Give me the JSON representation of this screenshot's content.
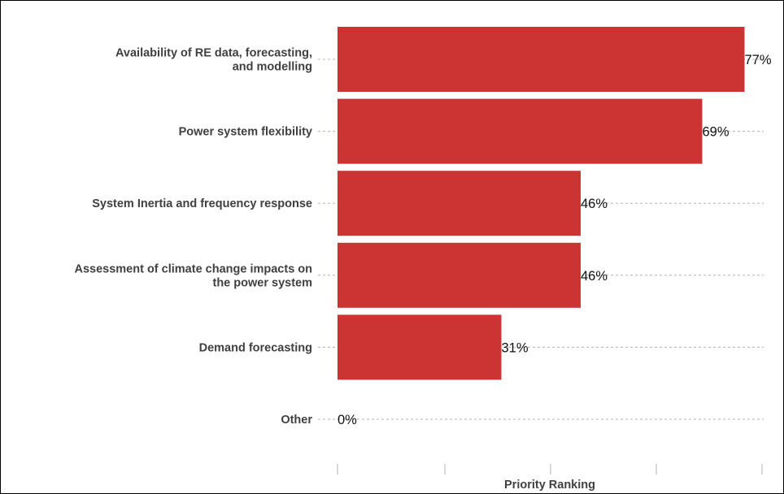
{
  "chart_data": {
    "type": "bar",
    "orientation": "horizontal",
    "categories": [
      [
        "Availability of RE data, forecasting,",
        "and modelling"
      ],
      [
        "Power system flexibility"
      ],
      [
        "System Inertia and frequency response"
      ],
      [
        "Assessment of climate change impacts on",
        "the power system"
      ],
      [
        "Demand forecasting"
      ],
      [
        "Other"
      ]
    ],
    "values": [
      77,
      69,
      46,
      46,
      31,
      0
    ],
    "value_labels": [
      "77%",
      "69%",
      "46%",
      "46%",
      "31%",
      "0%"
    ],
    "xlabel": "Priority Ranking",
    "xlim": [
      0,
      80
    ],
    "grid": "horizontal dashed",
    "colors": {
      "bar": "#cc3333",
      "grid": "#b3b3b3",
      "text": "#404040",
      "frame": "#000000"
    }
  }
}
